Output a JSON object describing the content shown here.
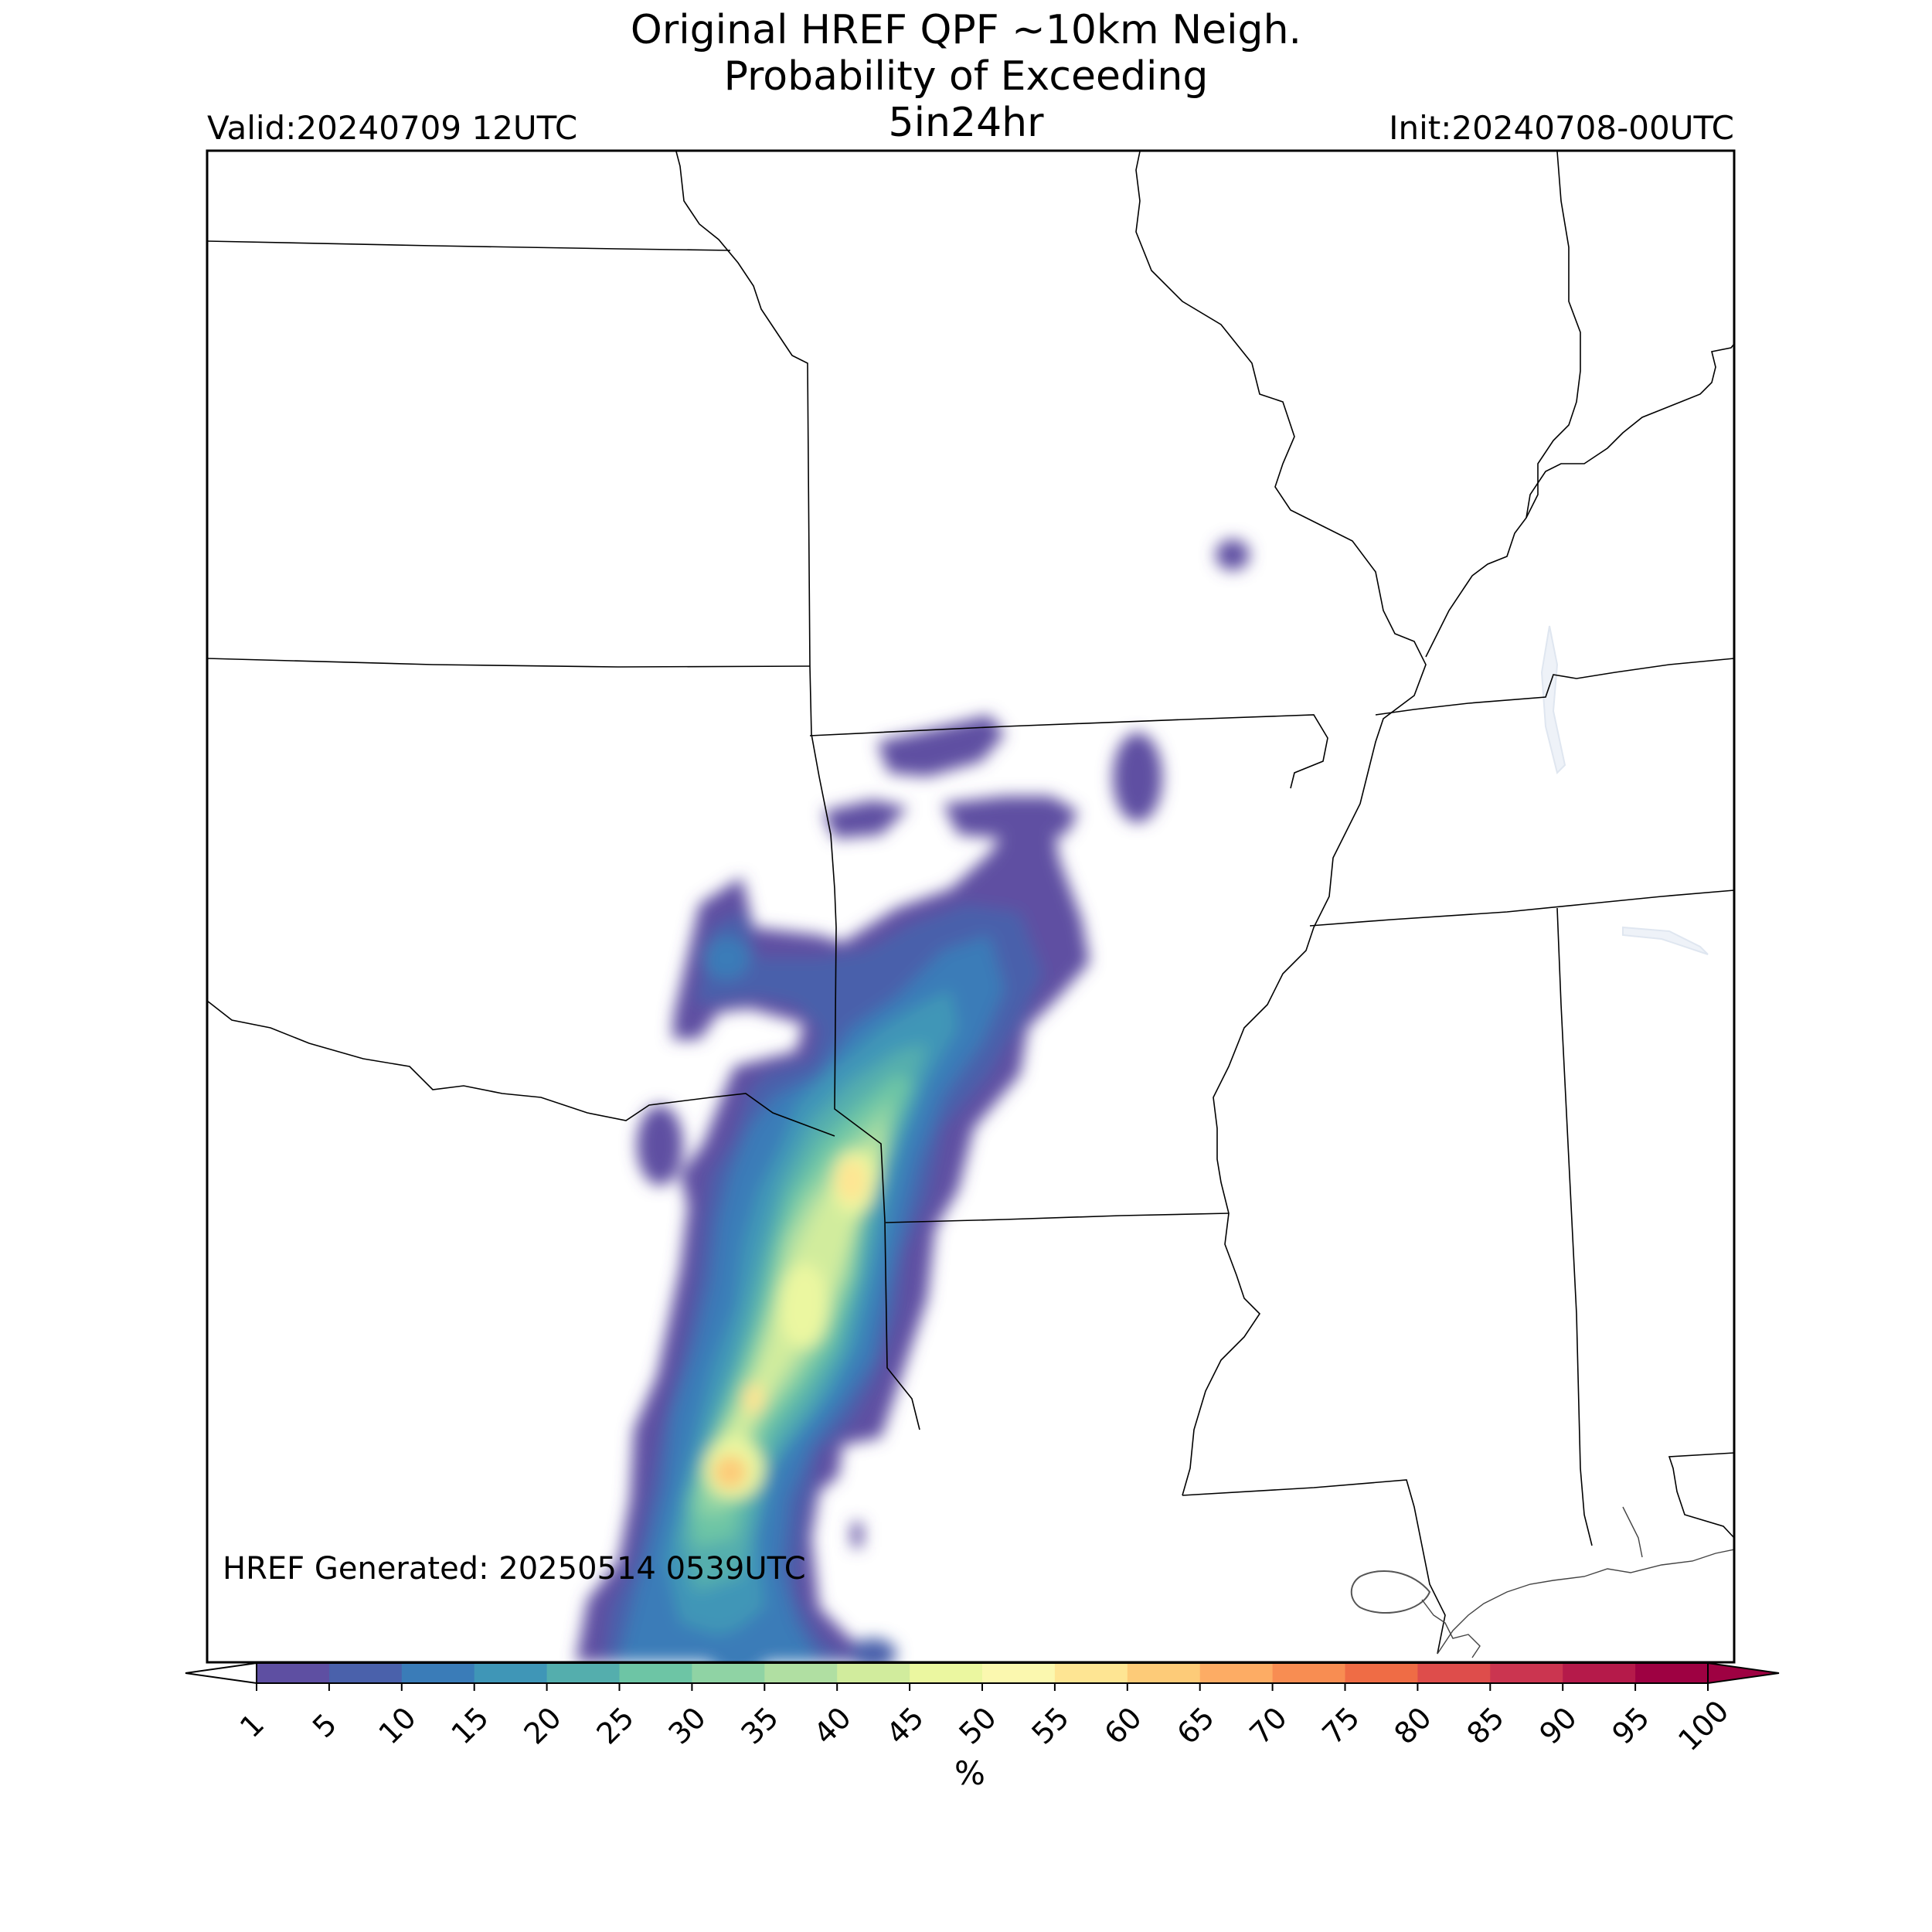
{
  "title": {
    "line1": "Original HREF QPF ~10km Neigh.",
    "line2": "Probability of Exceeding",
    "line3": "5in24hr"
  },
  "valid_label": "Valid:20240709 12UTC",
  "init_label": "Init:20240708-00UTC",
  "generated_label": "HREF Generated: 20250514 0539UTC",
  "colorbar": {
    "unit": "%",
    "ticks": [
      "1",
      "5",
      "10",
      "15",
      "20",
      "25",
      "30",
      "35",
      "40",
      "45",
      "50",
      "55",
      "60",
      "65",
      "70",
      "75",
      "80",
      "85",
      "90",
      "95",
      "100"
    ],
    "colors": [
      "#5e4fa2",
      "#4a61ab",
      "#3a7cb8",
      "#3f96b7",
      "#54aead",
      "#6dc5a5",
      "#8fd3a4",
      "#b0dfa2",
      "#d1ec9d",
      "#ebf7a0",
      "#fbf8af",
      "#fee593",
      "#fdcb78",
      "#fdac64",
      "#f88d52",
      "#ef6c45",
      "#de4d4b",
      "#cb3550",
      "#b51a4a",
      "#9e0142"
    ],
    "under_color": "#ffffff",
    "over_color": "#9e0142"
  },
  "map": {
    "border_color": "#000000",
    "water_color": "#eef2f8"
  }
}
